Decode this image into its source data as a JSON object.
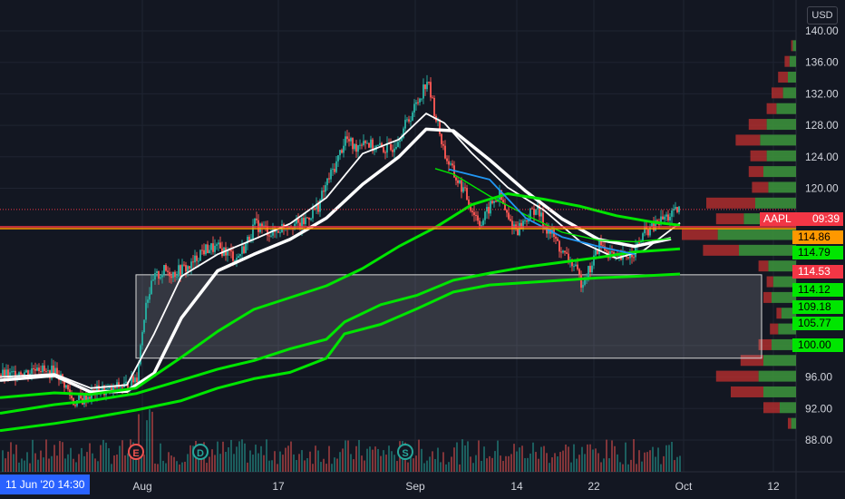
{
  "currency": "USD",
  "symbol_label": {
    "ticker": "AAPL",
    "countdown": "09:39"
  },
  "crosshair_date": "11 Jun '20  14:30",
  "colors": {
    "bg": "#131722",
    "grid": "#1f2431",
    "up": "#26a69a",
    "down": "#ef5350",
    "sma_fast": "#ffffff",
    "sma_green": "#00e600",
    "blue_line": "#2196f3",
    "level_red": "#f23645",
    "level_orange": "#ff9800",
    "vp_green": "#3b8f3b",
    "vp_red": "#b82e2e"
  },
  "chart_data": {
    "type": "candlestick",
    "ylim": [
      86,
      142
    ],
    "y_ticks": [
      "140.00",
      "136.00",
      "132.00",
      "128.00",
      "124.00",
      "120.00",
      "100.00",
      "96.00",
      "92.00",
      "88.00"
    ],
    "x_ticks": [
      "Aug",
      "17",
      "Sep",
      "14",
      "22",
      "Oct",
      "12"
    ],
    "close_path": [
      [
        0,
        96.3
      ],
      [
        10,
        96.1
      ],
      [
        20,
        96.8
      ],
      [
        30,
        96.5
      ],
      [
        40,
        97.6
      ],
      [
        50,
        96.4
      ],
      [
        60,
        96.9
      ],
      [
        70,
        95.2
      ],
      [
        80,
        92.8
      ],
      [
        90,
        93.1
      ],
      [
        100,
        93.9
      ],
      [
        110,
        94.4
      ],
      [
        120,
        94.1
      ],
      [
        130,
        94.8
      ],
      [
        140,
        94.9
      ],
      [
        150,
        96.1
      ],
      [
        160,
        105.8
      ],
      [
        170,
        108.6
      ],
      [
        180,
        109.5
      ],
      [
        190,
        109.2
      ],
      [
        200,
        109.7
      ],
      [
        210,
        110.1
      ],
      [
        220,
        111.9
      ],
      [
        230,
        112.4
      ],
      [
        240,
        112.3
      ],
      [
        250,
        111.9
      ],
      [
        260,
        111.1
      ],
      [
        270,
        112.8
      ],
      [
        280,
        115.4
      ],
      [
        290,
        114.9
      ],
      [
        300,
        114.2
      ],
      [
        310,
        115.1
      ],
      [
        320,
        115.6
      ],
      [
        330,
        115.2
      ],
      [
        340,
        116.5
      ],
      [
        350,
        117.8
      ],
      [
        360,
        120.8
      ],
      [
        370,
        123.2
      ],
      [
        380,
        126.4
      ],
      [
        390,
        125.1
      ],
      [
        400,
        126.3
      ],
      [
        410,
        125.2
      ],
      [
        420,
        125.1
      ],
      [
        430,
        124.9
      ],
      [
        440,
        126.8
      ],
      [
        450,
        128.8
      ],
      [
        460,
        131.1
      ],
      [
        470,
        133.8
      ],
      [
        480,
        128.9
      ],
      [
        490,
        124.2
      ],
      [
        500,
        121.6
      ],
      [
        510,
        119.8
      ],
      [
        520,
        117.2
      ],
      [
        530,
        115.5
      ],
      [
        540,
        117.8
      ],
      [
        550,
        119.1
      ],
      [
        560,
        115.9
      ],
      [
        570,
        114.8
      ],
      [
        580,
        116.2
      ],
      [
        590,
        117.6
      ],
      [
        600,
        115.2
      ],
      [
        610,
        113.8
      ],
      [
        620,
        111.6
      ],
      [
        630,
        110.5
      ],
      [
        640,
        108.1
      ],
      [
        650,
        109.8
      ],
      [
        660,
        112.9
      ],
      [
        670,
        111.9
      ],
      [
        680,
        110.8
      ],
      [
        690,
        111.4
      ],
      [
        700,
        112.2
      ],
      [
        710,
        114.4
      ],
      [
        720,
        115.1
      ],
      [
        730,
        116.1
      ],
      [
        740,
        116.6
      ],
      [
        750,
        117.3
      ]
    ],
    "series": [
      {
        "name": "",
        "color": "#ffffff",
        "points": [
          [
            0,
            96.0
          ],
          [
            60,
            96.4
          ],
          [
            100,
            94.6
          ],
          [
            140,
            95.0
          ],
          [
            170,
            101.5
          ],
          [
            200,
            108.8
          ],
          [
            240,
            111.6
          ],
          [
            280,
            113.5
          ],
          [
            320,
            115.5
          ],
          [
            360,
            118.8
          ],
          [
            400,
            124.4
          ],
          [
            440,
            126.2
          ],
          [
            470,
            129.5
          ],
          [
            490,
            128.3
          ],
          [
            520,
            124.5
          ],
          [
            560,
            120.1
          ],
          [
            600,
            117.2
          ],
          [
            640,
            113.2
          ],
          [
            680,
            111.1
          ],
          [
            710,
            112.1
          ],
          [
            750,
            115.6
          ]
        ]
      },
      {
        "name": "",
        "color": "#ffffff",
        "points": [
          [
            0,
            95.6
          ],
          [
            60,
            96.2
          ],
          [
            100,
            94.1
          ],
          [
            140,
            94.2
          ],
          [
            170,
            96.5
          ],
          [
            200,
            103.5
          ],
          [
            240,
            109.5
          ],
          [
            280,
            111.6
          ],
          [
            320,
            113.5
          ],
          [
            360,
            116.2
          ],
          [
            400,
            120.5
          ],
          [
            440,
            124.0
          ],
          [
            470,
            127.5
          ],
          [
            500,
            127.3
          ],
          [
            540,
            123.6
          ],
          [
            580,
            119.6
          ],
          [
            620,
            116.1
          ],
          [
            660,
            113.5
          ],
          [
            700,
            112.6
          ],
          [
            740,
            113.6
          ]
        ]
      },
      {
        "name": "",
        "color": "#00e600",
        "points": [
          [
            0,
            93.4
          ],
          [
            60,
            94.0
          ],
          [
            100,
            93.8
          ],
          [
            150,
            94.6
          ],
          [
            200,
            98.5
          ],
          [
            240,
            101.8
          ],
          [
            280,
            104.6
          ],
          [
            320,
            106.1
          ],
          [
            360,
            107.6
          ],
          [
            400,
            109.8
          ],
          [
            440,
            112.6
          ],
          [
            480,
            115.0
          ],
          [
            520,
            117.9
          ],
          [
            560,
            119.3
          ],
          [
            600,
            118.6
          ],
          [
            640,
            117.7
          ],
          [
            680,
            116.5
          ],
          [
            720,
            115.7
          ],
          [
            750,
            115.3
          ]
        ]
      },
      {
        "name": "",
        "color": "#00e600",
        "points": [
          [
            0,
            91.4
          ],
          [
            60,
            92.5
          ],
          [
            100,
            93.0
          ],
          [
            150,
            93.9
          ],
          [
            200,
            95.6
          ],
          [
            240,
            97.0
          ],
          [
            280,
            98.1
          ],
          [
            320,
            99.6
          ],
          [
            360,
            100.8
          ],
          [
            380,
            103.0
          ],
          [
            420,
            105.2
          ],
          [
            460,
            106.4
          ],
          [
            500,
            108.3
          ],
          [
            540,
            109.2
          ],
          [
            580,
            110.0
          ],
          [
            620,
            110.6
          ],
          [
            660,
            111.2
          ],
          [
            700,
            111.9
          ],
          [
            750,
            112.3
          ]
        ]
      },
      {
        "name": "",
        "color": "#00e600",
        "points": [
          [
            0,
            89.2
          ],
          [
            60,
            90.1
          ],
          [
            100,
            90.8
          ],
          [
            150,
            91.8
          ],
          [
            200,
            93.0
          ],
          [
            240,
            94.6
          ],
          [
            280,
            95.8
          ],
          [
            320,
            96.6
          ],
          [
            360,
            98.4
          ],
          [
            380,
            101.5
          ],
          [
            420,
            102.7
          ],
          [
            460,
            104.7
          ],
          [
            500,
            106.8
          ],
          [
            540,
            107.7
          ],
          [
            580,
            108.0
          ],
          [
            620,
            108.3
          ],
          [
            660,
            108.6
          ],
          [
            700,
            108.8
          ],
          [
            750,
            109.1
          ]
        ]
      },
      {
        "name": "",
        "color": "#00e600",
        "points": [
          [
            480,
            122.5
          ],
          [
            500,
            121.8
          ],
          [
            540,
            119.0
          ],
          [
            580,
            116.6
          ],
          [
            620,
            114.4
          ],
          [
            660,
            113.4
          ],
          [
            700,
            113.2
          ],
          [
            740,
            113.6
          ]
        ]
      },
      {
        "name": "",
        "color": "#2196f3",
        "points": [
          [
            495,
            122.4
          ],
          [
            540,
            121.1
          ],
          [
            580,
            116.2
          ],
          [
            620,
            113.8
          ],
          [
            660,
            112.6
          ],
          [
            700,
            111.6
          ]
        ]
      }
    ],
    "price_levels": [
      {
        "value": 114.86,
        "color": "#ff9800",
        "label": "114.86"
      },
      {
        "value": 114.79,
        "color": "#00e600",
        "label": "114.79"
      },
      {
        "value": 114.53,
        "color": "#f23645",
        "label": "114.53"
      },
      {
        "value": 114.12,
        "color": "#00e600",
        "label": "114.12"
      },
      {
        "value": 109.18,
        "color": "#00e600",
        "label": "109.18"
      },
      {
        "value": 105.77,
        "color": "#00e600",
        "label": "105.77"
      },
      {
        "value": 100.0,
        "color": "#00e600",
        "label": "100.00"
      }
    ],
    "box": {
      "x_from": 150,
      "x_to": 840,
      "y_top": 109.0,
      "y_bottom": 98.4
    },
    "volume_profile": [
      {
        "price": 138,
        "buy": 4,
        "sell": 2
      },
      {
        "price": 136,
        "buy": 8,
        "sell": 6
      },
      {
        "price": 134,
        "buy": 10,
        "sell": 12
      },
      {
        "price": 132,
        "buy": 16,
        "sell": 14
      },
      {
        "price": 130,
        "buy": 24,
        "sell": 12
      },
      {
        "price": 128,
        "buy": 36,
        "sell": 22
      },
      {
        "price": 126,
        "buy": 44,
        "sell": 30
      },
      {
        "price": 124,
        "buy": 36,
        "sell": 20
      },
      {
        "price": 122,
        "buy": 40,
        "sell": 18
      },
      {
        "price": 120,
        "buy": 34,
        "sell": 20
      },
      {
        "price": 118,
        "buy": 50,
        "sell": 60
      },
      {
        "price": 116,
        "buy": 64,
        "sell": 34
      },
      {
        "price": 114,
        "buy": 96,
        "sell": 44
      },
      {
        "price": 112,
        "buy": 70,
        "sell": 44
      },
      {
        "price": 110,
        "buy": 34,
        "sell": 12
      },
      {
        "price": 108,
        "buy": 28,
        "sell": 8
      },
      {
        "price": 106,
        "buy": 30,
        "sell": 10
      },
      {
        "price": 104,
        "buy": 18,
        "sell": 6
      },
      {
        "price": 102,
        "buy": 22,
        "sell": 10
      },
      {
        "price": 100,
        "buy": 30,
        "sell": 16
      },
      {
        "price": 98,
        "buy": 40,
        "sell": 28
      },
      {
        "price": 96,
        "buy": 46,
        "sell": 52
      },
      {
        "price": 94,
        "buy": 40,
        "sell": 40
      },
      {
        "price": 92,
        "buy": 20,
        "sell": 20
      },
      {
        "price": 90,
        "buy": 6,
        "sell": 4
      }
    ],
    "events": [
      {
        "letter": "E",
        "color": "#ef5350"
      },
      {
        "letter": "D",
        "color": "#26a69a"
      },
      {
        "letter": "S",
        "color": "#26a69a"
      }
    ]
  }
}
